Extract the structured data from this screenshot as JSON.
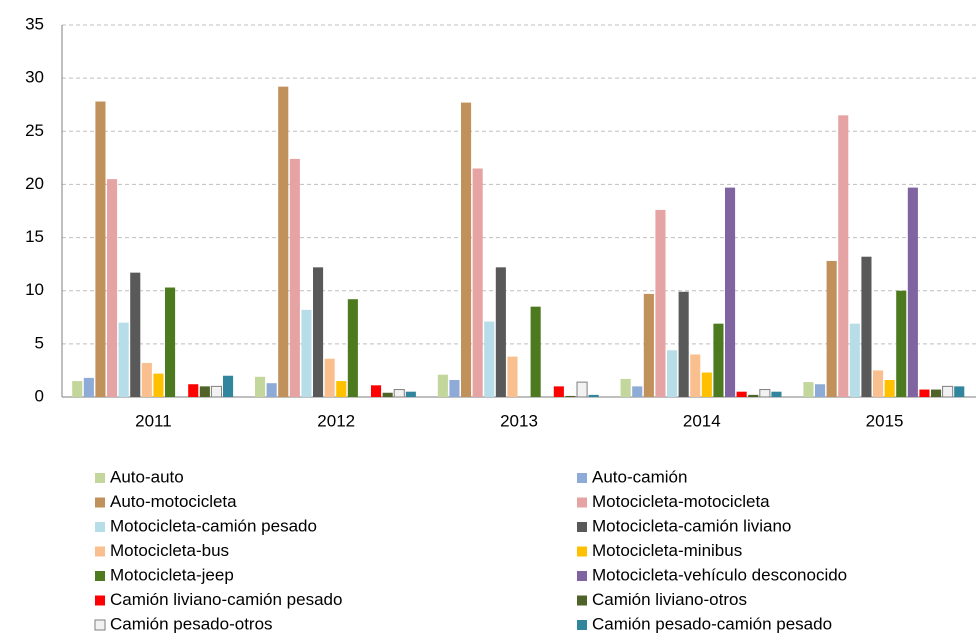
{
  "chart_data": {
    "type": "bar",
    "categories": [
      "2011",
      "2012",
      "2013",
      "2014",
      "2015"
    ],
    "ylim": [
      0,
      35
    ],
    "yticks": [
      0,
      5,
      10,
      15,
      20,
      25,
      30,
      35
    ],
    "grid": true,
    "legend": "bottom",
    "series": [
      {
        "name": "Auto-auto",
        "color": "#c3d69b",
        "values": [
          1.5,
          1.9,
          2.1,
          1.7,
          1.4
        ]
      },
      {
        "name": "Auto-camión",
        "color": "#8eaad6",
        "values": [
          1.8,
          1.3,
          1.6,
          1.0,
          1.2
        ]
      },
      {
        "name": "Auto-motocicleta",
        "color": "#c0915a",
        "values": [
          27.8,
          29.2,
          27.7,
          9.7,
          12.8
        ]
      },
      {
        "name": "Motocicleta-motocicleta",
        "color": "#e6a3a3",
        "values": [
          20.5,
          22.4,
          21.5,
          17.6,
          26.5
        ]
      },
      {
        "name": "Motocicleta-camión pesado",
        "color": "#b7dee8",
        "values": [
          7.0,
          8.2,
          7.1,
          4.4,
          6.9
        ]
      },
      {
        "name": "Motocicleta-camión liviano",
        "color": "#595959",
        "values": [
          11.7,
          12.2,
          12.2,
          9.9,
          13.2
        ]
      },
      {
        "name": "Motocicleta-bus",
        "color": "#fabf8f",
        "values": [
          3.2,
          3.6,
          3.8,
          4.0,
          2.5
        ]
      },
      {
        "name": "Motocicleta-minibus",
        "color": "#ffc000",
        "values": [
          2.2,
          1.5,
          0,
          2.3,
          1.6
        ]
      },
      {
        "name": "Motocicleta-jeep",
        "color": "#4e7a1f",
        "values": [
          10.3,
          9.2,
          8.5,
          6.9,
          10.0
        ]
      },
      {
        "name": "Motocicleta-vehículo desconocido",
        "color": "#8064a2",
        "values": [
          0,
          0,
          0,
          19.7,
          19.7
        ]
      },
      {
        "name": "Camión liviano-camión pesado",
        "color": "#ff0000",
        "values": [
          1.2,
          1.1,
          1.0,
          0.5,
          0.7
        ]
      },
      {
        "name": "Camión liviano-otros",
        "color": "#4f6228",
        "values": [
          1.0,
          0.4,
          0.1,
          0.2,
          0.7
        ]
      },
      {
        "name": "Camión pesado-otros",
        "color": "#f2f2f2",
        "values": [
          1.0,
          0.7,
          1.4,
          0.7,
          1.0
        ]
      },
      {
        "name": "Camión pesado-camión pesado",
        "color": "#31859c",
        "values": [
          2.0,
          0.5,
          0.2,
          0.5,
          1.0
        ]
      }
    ]
  }
}
